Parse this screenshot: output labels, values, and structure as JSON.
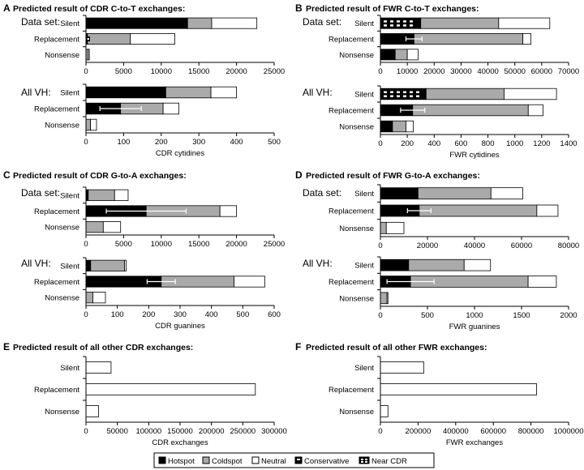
{
  "figure": {
    "legend": [
      {
        "label": "Hotspot",
        "key": "hotspot"
      },
      {
        "label": "Coldspot",
        "key": "coldspot"
      },
      {
        "label": "Neutral",
        "key": "neutral"
      },
      {
        "label": "Conservative",
        "key": "conservative"
      },
      {
        "label": "Near CDR",
        "key": "nearcdr"
      }
    ],
    "colors": {
      "hotspot": "#000000",
      "coldspot": "#aaaaaa",
      "neutral": "#ffffff",
      "stroke": "#000000",
      "errorbar": "#ffffff"
    }
  },
  "chart_data": [
    {
      "letter": "A",
      "title": "Predicted result of CDR C-to-T exchanges:",
      "type": "bar",
      "orientation": "horizontal",
      "stacked": true,
      "categories": [
        "Silent",
        "Replacement",
        "Nonsense"
      ],
      "subcharts": [
        {
          "label": "Data set:",
          "xlim": [
            0,
            25000
          ],
          "ticks": [
            0,
            5000,
            10000,
            15000,
            20000,
            25000
          ],
          "xlabel": "",
          "series": [
            {
              "name": "Hotspot",
              "values": [
                13500,
                200,
                0
              ]
            },
            {
              "name": "Coldspot",
              "values": [
                3200,
                5700,
                300
              ]
            },
            {
              "name": "Neutral",
              "values": [
                6000,
                5900,
                150
              ]
            }
          ],
          "errors": [],
          "conservative": [
            false,
            true,
            false
          ],
          "nearcdr": [
            false,
            false,
            false
          ]
        },
        {
          "label": "All VH:",
          "xlim": [
            0,
            500
          ],
          "ticks": [
            0,
            100,
            200,
            300,
            400,
            500
          ],
          "xlabel": "CDR cytidines",
          "series": [
            {
              "name": "Hotspot",
              "values": [
                212,
                92,
                0
              ]
            },
            {
              "name": "Coldspot",
              "values": [
                120,
                113,
                12
              ]
            },
            {
              "name": "Neutral",
              "values": [
                68,
                42,
                16
              ]
            }
          ],
          "errors": [
            {
              "cat": 1,
              "x": 92,
              "err": 55
            }
          ],
          "conservative": [
            false,
            false,
            false
          ],
          "nearcdr": [
            false,
            false,
            false
          ]
        }
      ]
    },
    {
      "letter": "B",
      "title": "Predicted result of FWR C-to-T exchanges:",
      "type": "bar",
      "orientation": "horizontal",
      "stacked": true,
      "categories": [
        "Silent",
        "Replacement",
        "Nonsense"
      ],
      "subcharts": [
        {
          "label": "Data set:",
          "xlim": [
            0,
            70000
          ],
          "ticks": [
            0,
            10000,
            20000,
            30000,
            40000,
            50000,
            60000,
            70000
          ],
          "xlabel": "",
          "series": [
            {
              "name": "Hotspot",
              "values": [
                15000,
                12500,
                5500
              ]
            },
            {
              "name": "Coldspot",
              "values": [
                29000,
                40500,
                4500
              ]
            },
            {
              "name": "Neutral",
              "values": [
                19000,
                3000,
                4000
              ]
            }
          ],
          "errors": [
            {
              "cat": 1,
              "x": 12500,
              "err": 3000
            }
          ],
          "conservative": [
            false,
            false,
            false
          ],
          "nearcdr": [
            true,
            false,
            false
          ]
        },
        {
          "label": "All VH:",
          "xlim": [
            0,
            1400
          ],
          "ticks": [
            0,
            200,
            400,
            600,
            800,
            1000,
            1200,
            1400
          ],
          "xlabel": "FWR cytidines",
          "series": [
            {
              "name": "Hotspot",
              "values": [
                340,
                240,
                90
              ]
            },
            {
              "name": "Coldspot",
              "values": [
                580,
                860,
                100
              ]
            },
            {
              "name": "Neutral",
              "values": [
                390,
                110,
                55
              ]
            }
          ],
          "errors": [
            {
              "cat": 1,
              "x": 240,
              "err": 90
            }
          ],
          "conservative": [
            false,
            false,
            false
          ],
          "nearcdr": [
            true,
            false,
            false
          ]
        }
      ]
    },
    {
      "letter": "C",
      "title": "Predicted result of CDR G-to-A exchanges:",
      "type": "bar",
      "orientation": "horizontal",
      "stacked": true,
      "categories": [
        "Silent",
        "Replacement",
        "Nonsense"
      ],
      "subcharts": [
        {
          "label": "Data set:",
          "xlim": [
            0,
            25000
          ],
          "ticks": [
            0,
            5000,
            10000,
            15000,
            20000,
            25000
          ],
          "xlabel": "",
          "series": [
            {
              "name": "Hotspot",
              "values": [
                300,
                8000,
                0
              ]
            },
            {
              "name": "Coldspot",
              "values": [
                3500,
                9800,
                2300
              ]
            },
            {
              "name": "Neutral",
              "values": [
                1800,
                2200,
                2300
              ]
            }
          ],
          "errors": [
            {
              "cat": 1,
              "x": 8000,
              "err": 5300
            }
          ],
          "conservative": [
            false,
            false,
            false
          ],
          "nearcdr": [
            false,
            false,
            false
          ]
        },
        {
          "label": "All VH:",
          "xlim": [
            0,
            600
          ],
          "ticks": [
            0,
            100,
            200,
            300,
            400,
            500,
            600
          ],
          "xlabel": "CDR guanines",
          "series": [
            {
              "name": "Hotspot",
              "values": [
                15,
                240,
                0
              ]
            },
            {
              "name": "Coldspot",
              "values": [
                108,
                232,
                22
              ]
            },
            {
              "name": "Neutral",
              "values": [
                5,
                98,
                40
              ]
            }
          ],
          "errors": [
            {
              "cat": 1,
              "x": 240,
              "err": 45
            }
          ],
          "conservative": [
            false,
            false,
            false
          ],
          "nearcdr": [
            false,
            false,
            false
          ]
        }
      ]
    },
    {
      "letter": "D",
      "title": "Predicted result of FWR G-to-A exchanges:",
      "type": "bar",
      "orientation": "horizontal",
      "stacked": true,
      "categories": [
        "Silent",
        "Replacement",
        "Nonsense"
      ],
      "subcharts": [
        {
          "label": "Data set:",
          "xlim": [
            0,
            80000
          ],
          "ticks": [
            0,
            20000,
            40000,
            60000,
            80000
          ],
          "xlabel": "",
          "series": [
            {
              "name": "Hotspot",
              "values": [
                16000,
                16500,
                0
              ]
            },
            {
              "name": "Coldspot",
              "values": [
                31000,
                50000,
                2500
              ]
            },
            {
              "name": "Neutral",
              "values": [
                13500,
                9000,
                7500
              ]
            }
          ],
          "errors": [
            {
              "cat": 1,
              "x": 16500,
              "err": 5000
            }
          ],
          "conservative": [
            false,
            false,
            false
          ],
          "nearcdr": [
            false,
            false,
            false
          ]
        },
        {
          "label": "All VH:",
          "xlim": [
            0,
            2000
          ],
          "ticks": [
            0,
            500,
            1000,
            1500,
            2000
          ],
          "xlabel": "FWR guanines",
          "series": [
            {
              "name": "Hotspot",
              "values": [
                300,
                320,
                0
              ]
            },
            {
              "name": "Coldspot",
              "values": [
                590,
                1250,
                70
              ]
            },
            {
              "name": "Neutral",
              "values": [
                280,
                300,
                10
              ]
            }
          ],
          "errors": [
            {
              "cat": 1,
              "x": 320,
              "err": 250
            }
          ],
          "conservative": [
            false,
            false,
            false
          ],
          "nearcdr": [
            false,
            false,
            false
          ]
        }
      ]
    },
    {
      "letter": "E",
      "title": "Predicted result of all other CDR exchanges:",
      "type": "bar",
      "orientation": "horizontal",
      "stacked": true,
      "categories": [
        "Silent",
        "Replacement",
        "Nonsense"
      ],
      "subcharts": [
        {
          "label": "",
          "xlim": [
            0,
            300000
          ],
          "ticks": [
            0,
            50000,
            100000,
            150000,
            200000,
            250000,
            300000
          ],
          "xlabel": "CDR exchanges",
          "series": [
            {
              "name": "Neutral",
              "values": [
                40000,
                270000,
                20000
              ]
            }
          ],
          "errors": [],
          "conservative": [
            false,
            false,
            false
          ],
          "nearcdr": [
            false,
            false,
            false
          ]
        }
      ]
    },
    {
      "letter": "F",
      "title": "Predicted result of all other FWR exchanges:",
      "type": "bar",
      "orientation": "horizontal",
      "stacked": true,
      "categories": [
        "Silent",
        "Replacement",
        "Nonsense"
      ],
      "subcharts": [
        {
          "label": "",
          "xlim": [
            0,
            1000000
          ],
          "ticks": [
            0,
            200000,
            400000,
            600000,
            800000,
            1000000
          ],
          "xlabel": "FWR exchanges",
          "series": [
            {
              "name": "Neutral",
              "values": [
                230000,
                830000,
                40000
              ]
            }
          ],
          "errors": [],
          "conservative": [
            false,
            false,
            false
          ],
          "nearcdr": [
            false,
            false,
            false
          ]
        }
      ]
    }
  ]
}
